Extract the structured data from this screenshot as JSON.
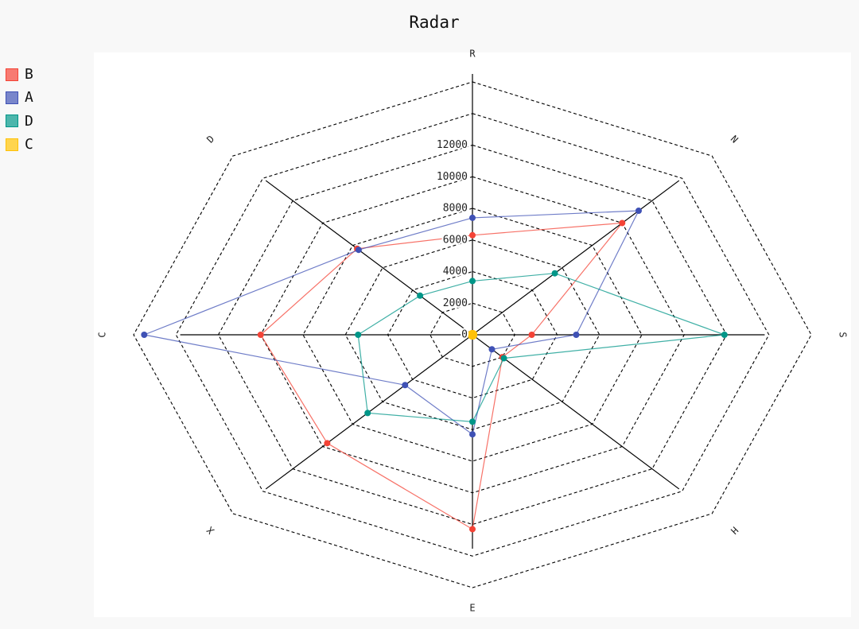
{
  "chart_data": {
    "type": "radar",
    "title": "Radar",
    "axes": [
      "R",
      "N",
      "S",
      "H",
      "E",
      "X",
      "C",
      "D"
    ],
    "ticks": [
      0,
      2000,
      4000,
      6000,
      8000,
      10000,
      12000
    ],
    "rmax": 16000,
    "legend_position": "top-left",
    "series": [
      {
        "name": "B",
        "color": "#f44336",
        "swatch": "#f77b72",
        "values": [
          6300,
          10000,
          2800,
          2000,
          12300,
          9700,
          10000,
          7700
        ]
      },
      {
        "name": "A",
        "color": "#3f51b5",
        "swatch": "#7986cb",
        "values": [
          7400,
          11100,
          4900,
          1300,
          6300,
          4500,
          15500,
          7600
        ]
      },
      {
        "name": "D",
        "color": "#009688",
        "swatch": "#4db6ac",
        "values": [
          3400,
          5500,
          11900,
          2100,
          5500,
          7000,
          5400,
          3500
        ]
      },
      {
        "name": "C",
        "color": "#ffc107",
        "swatch": "#ffd54f",
        "values": [
          0,
          0,
          0,
          0,
          0,
          0,
          0,
          0
        ]
      }
    ]
  }
}
